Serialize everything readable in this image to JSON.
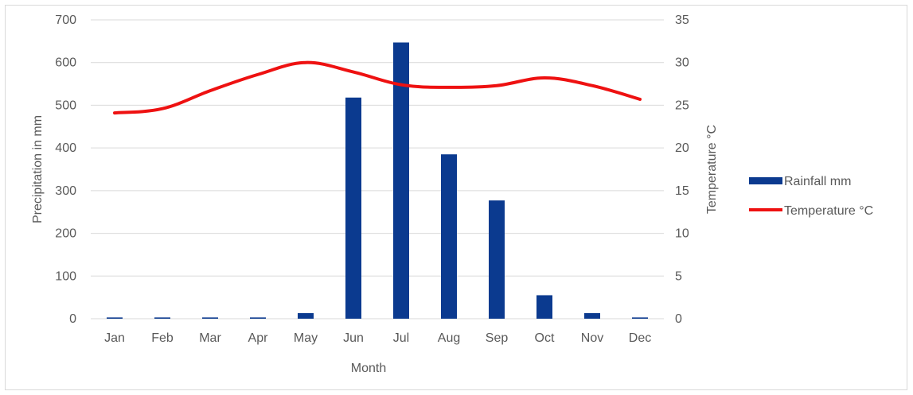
{
  "chart_data": {
    "type": "bar",
    "categories": [
      "Jan",
      "Feb",
      "Mar",
      "Apr",
      "May",
      "Jun",
      "Jul",
      "Aug",
      "Sep",
      "Oct",
      "Nov",
      "Dec"
    ],
    "series": [
      {
        "name": "Rainfall mm",
        "type": "bar",
        "axis": "left",
        "color": "#0b3a8f",
        "values": [
          3,
          3,
          3,
          3,
          13,
          518,
          647,
          385,
          277,
          55,
          13,
          3
        ]
      },
      {
        "name": "Temperature °C",
        "type": "line",
        "axis": "right",
        "color": "#ee1111",
        "values": [
          24.1,
          24.6,
          26.7,
          28.6,
          30.0,
          28.9,
          27.4,
          27.1,
          27.3,
          28.2,
          27.3,
          25.7
        ]
      }
    ],
    "title": "",
    "xlabel": "Month",
    "ylabel": "Precipitation in mm",
    "y2label": "Temperature °C",
    "ylim": [
      0,
      700
    ],
    "y2lim": [
      0,
      35
    ],
    "yticks": [
      0,
      100,
      200,
      300,
      400,
      500,
      600,
      700
    ],
    "y2ticks": [
      0,
      5,
      10,
      15,
      20,
      25,
      30,
      35
    ],
    "grid": true,
    "legend": "right"
  }
}
